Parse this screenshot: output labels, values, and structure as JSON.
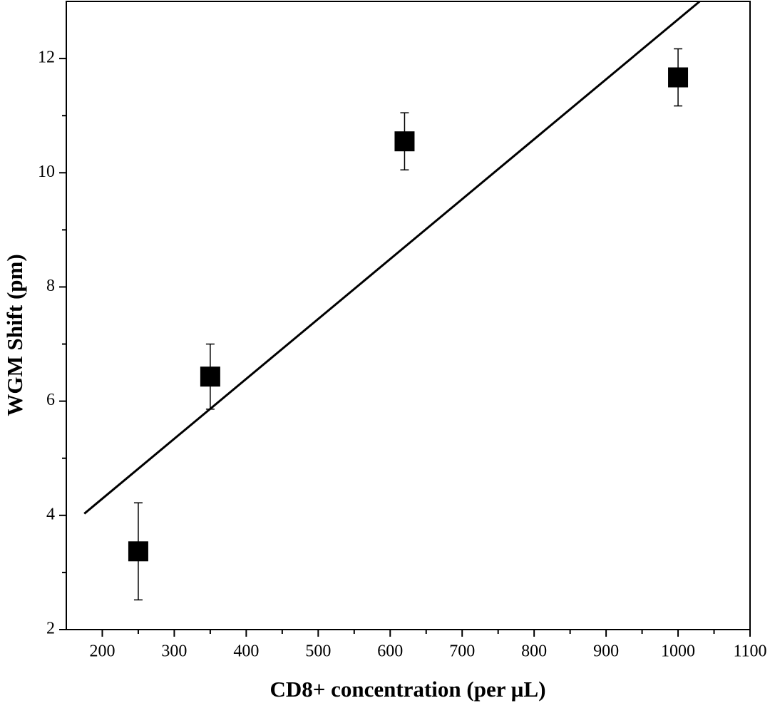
{
  "chart_data": {
    "type": "scatter",
    "x_label": "CD8+ concentration (per µL)",
    "y_label": "WGM Shift (pm)",
    "xlim": [
      150,
      1100
    ],
    "ylim": [
      2,
      13
    ],
    "xticks": [
      200,
      300,
      400,
      500,
      600,
      700,
      800,
      900,
      1000,
      1100
    ],
    "yticks": [
      2,
      4,
      6,
      8,
      10,
      12
    ],
    "xminorticks": [
      250,
      350,
      450,
      550,
      650,
      750,
      850,
      950,
      1050
    ],
    "yminorticks": [
      3,
      5,
      7,
      9,
      11
    ],
    "series": [
      {
        "style": "markers",
        "marker": "square",
        "color": "#000000",
        "x": [
          250,
          350,
          620,
          1000
        ],
        "values": [
          3.37,
          6.43,
          10.55,
          11.67
        ],
        "errors": [
          0.85,
          0.57,
          0.5,
          0.5
        ]
      },
      {
        "style": "line",
        "color": "#000000",
        "x": [
          175,
          1030
        ],
        "values": [
          4.03,
          13
        ]
      }
    ]
  }
}
